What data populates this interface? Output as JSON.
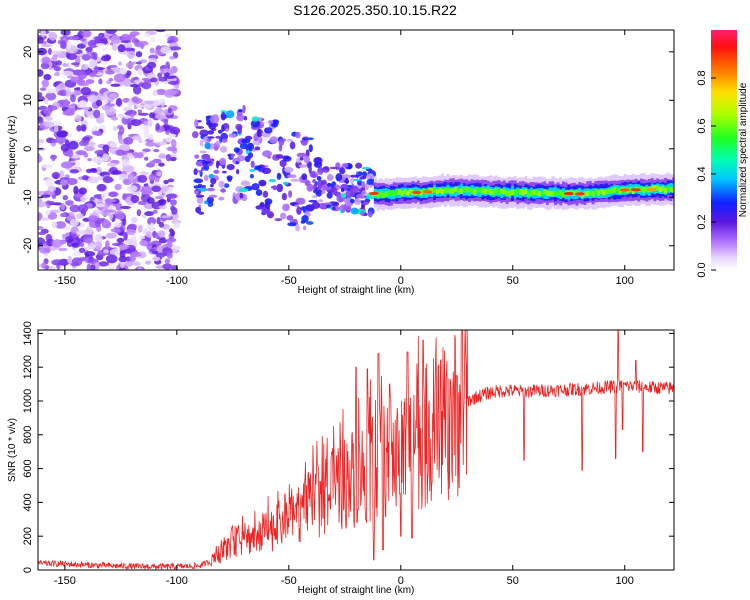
{
  "title": "S126.2025.350.10.15.R22",
  "chart_data": [
    {
      "type": "heatmap",
      "xlabel": "Height of straight line (km)",
      "ylabel": "Frequency (Hz)",
      "xlim": [
        -162,
        122
      ],
      "ylim": [
        -25,
        24.5
      ],
      "x_ticks": [
        -150,
        -100,
        -50,
        0,
        50,
        100
      ],
      "y_ticks": [
        -20,
        -10,
        0,
        10,
        20
      ],
      "colorbar": {
        "label": "Normalized spectral amplitude",
        "range": [
          0,
          1
        ],
        "ticks": [
          0.0,
          0.2,
          0.4,
          0.6,
          0.8
        ]
      },
      "regions": [
        {
          "x_range": [
            -162,
            -100
          ],
          "description_level": 0.08
        },
        {
          "x_range": [
            -90,
            -20
          ],
          "description_level": 0.3
        },
        {
          "x_range": [
            -10,
            122
          ],
          "description_level": 0.6
        }
      ],
      "ridge": [
        {
          "x": -90,
          "y": -6.5
        },
        {
          "x": -80,
          "y": -5
        },
        {
          "x": -70,
          "y": -4
        },
        {
          "x": -60,
          "y": -7
        },
        {
          "x": -50,
          "y": -6
        },
        {
          "x": -40,
          "y": -7
        },
        {
          "x": -30,
          "y": -8
        },
        {
          "x": -20,
          "y": -8
        },
        {
          "x": -10,
          "y": -9.5
        },
        {
          "x": 0,
          "y": -9
        },
        {
          "x": 10,
          "y": -9
        },
        {
          "x": 20,
          "y": -8.5
        },
        {
          "x": 50,
          "y": -9
        },
        {
          "x": 80,
          "y": -9.3
        },
        {
          "x": 100,
          "y": -8.5
        },
        {
          "x": 120,
          "y": -8.3
        }
      ]
    },
    {
      "type": "line",
      "xlabel": "Height of straight line (km)",
      "ylabel": "SNR (10 * v/v)",
      "xlim": [
        -162,
        122
      ],
      "ylim": [
        0,
        1420
      ],
      "x_ticks": [
        -150,
        -100,
        -50,
        0,
        50,
        100
      ],
      "y_ticks": [
        0,
        200,
        400,
        600,
        800,
        1000,
        1200,
        1400
      ],
      "series": [
        {
          "color": "#ee2222",
          "points": [
            [
              -162,
              40
            ],
            [
              -150,
              35
            ],
            [
              -140,
              30
            ],
            [
              -130,
              25
            ],
            [
              -120,
              22
            ],
            [
              -110,
              20
            ],
            [
              -100,
              20
            ],
            [
              -90,
              25
            ],
            [
              -85,
              50
            ],
            [
              -80,
              100
            ],
            [
              -75,
              170
            ],
            [
              -70,
              180
            ],
            [
              -65,
              200
            ],
            [
              -60,
              230
            ],
            [
              -55,
              260
            ],
            [
              -50,
              300
            ],
            [
              -45,
              350
            ],
            [
              -40,
              390
            ],
            [
              -35,
              430
            ],
            [
              -30,
              470
            ],
            [
              -25,
              520
            ],
            [
              -20,
              560
            ],
            [
              -15,
              590
            ],
            [
              -10,
              630
            ],
            [
              -5,
              670
            ],
            [
              0,
              700
            ],
            [
              5,
              740
            ],
            [
              10,
              780
            ],
            [
              15,
              820
            ],
            [
              20,
              860
            ],
            [
              25,
              930
            ],
            [
              30,
              1000
            ],
            [
              35,
              1030
            ],
            [
              40,
              1050
            ],
            [
              45,
              1060
            ],
            [
              50,
              1060
            ],
            [
              55,
              1055
            ],
            [
              60,
              1060
            ],
            [
              70,
              1065
            ],
            [
              80,
              1070
            ],
            [
              90,
              1080
            ],
            [
              100,
              1090
            ],
            [
              110,
              1080
            ],
            [
              122,
              1075
            ]
          ],
          "spikes_up": [
            [
              -20,
              1200
            ],
            [
              -15,
              1190
            ],
            [
              -10,
              1280
            ],
            [
              -5,
              1100
            ],
            [
              3,
              1290
            ],
            [
              10,
              1360
            ],
            [
              25,
              1150
            ],
            [
              97,
              1420
            ],
            [
              105,
              1240
            ]
          ],
          "spikes_down": [
            [
              -12,
              60
            ],
            [
              -8,
              120
            ],
            [
              0,
              200
            ],
            [
              5,
              190
            ],
            [
              55,
              650
            ],
            [
              81,
              590
            ],
            [
              96,
              660
            ],
            [
              99,
              830
            ],
            [
              108,
              700
            ]
          ]
        }
      ]
    }
  ]
}
